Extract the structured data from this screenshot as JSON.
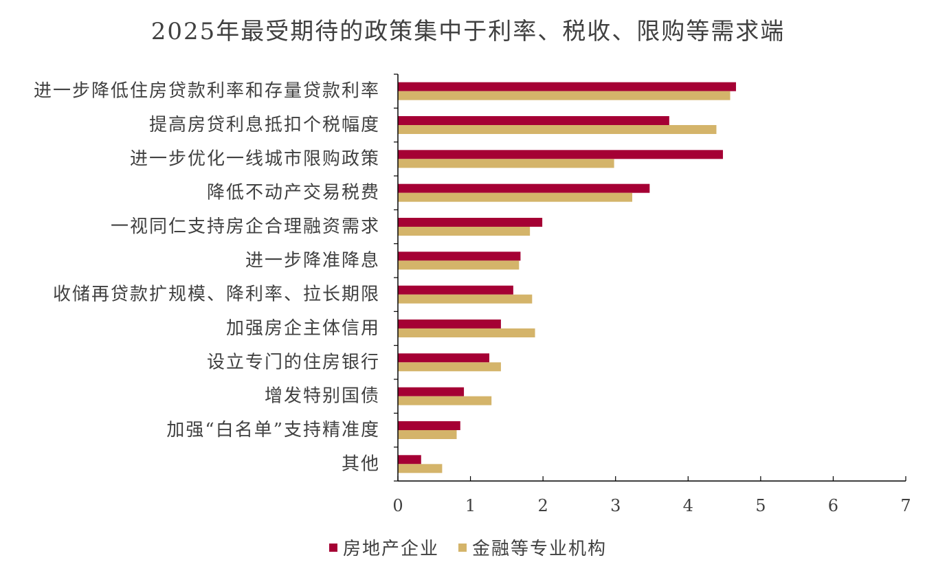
{
  "chart_data": {
    "type": "bar",
    "orientation": "horizontal",
    "title": "2025年最受期待的政策集中于利率、税收、限购等需求端",
    "categories": [
      "进一步降低住房贷款利率和存量贷款利率",
      "提高房贷利息抵扣个税幅度",
      "进一步优化一线城市限购政策",
      "降低不动产交易税费",
      "一视同仁支持房企合理融资需求",
      "进一步降准降息",
      "收储再贷款扩规模、降利率、拉长期限",
      "加强房企主体信用",
      "设立专门的住房银行",
      "增发特别国债",
      "加强“白名单”支持精准度",
      "其他"
    ],
    "series": [
      {
        "name": "房地产企业",
        "color": "#A50034",
        "values": [
          4.66,
          3.74,
          4.48,
          3.47,
          1.99,
          1.69,
          1.59,
          1.42,
          1.26,
          0.91,
          0.86,
          0.32
        ]
      },
      {
        "name": "金融等专业机构",
        "color": "#D4B46A",
        "values": [
          4.58,
          4.39,
          2.98,
          3.23,
          1.82,
          1.67,
          1.85,
          1.89,
          1.42,
          1.29,
          0.81,
          0.61
        ]
      }
    ],
    "xlim": [
      0,
      7
    ],
    "xticks": [
      "0",
      "1",
      "2",
      "3",
      "4",
      "5",
      "6",
      "7"
    ],
    "grid": false,
    "legend_position": "bottom"
  }
}
